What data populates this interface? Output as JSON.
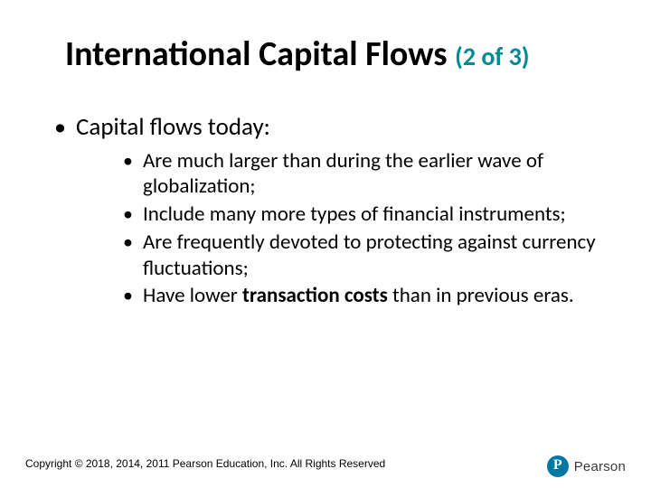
{
  "title": {
    "main": "International Capital Flows",
    "pagepart": "(2 of 3)"
  },
  "content": {
    "lead": "Capital flows today:",
    "points": [
      "Are much larger than during the earlier wave of globalization;",
      "Include many more types of financial instruments;",
      "Are frequently devoted to protecting against currency fluctuations;"
    ],
    "point4_pre": "Have lower ",
    "point4_bold": "transaction costs",
    "point4_post": " than in previous eras."
  },
  "footer": {
    "copyright": "Copyright © 2018, 2014, 2011 Pearson Education, Inc. All Rights Reserved",
    "brand_letter": "P",
    "brand_name": "Pearson"
  },
  "colors": {
    "accent": "#008996",
    "brand_circle": "#0076a3",
    "text": "#000000",
    "background": "#ffffff"
  }
}
